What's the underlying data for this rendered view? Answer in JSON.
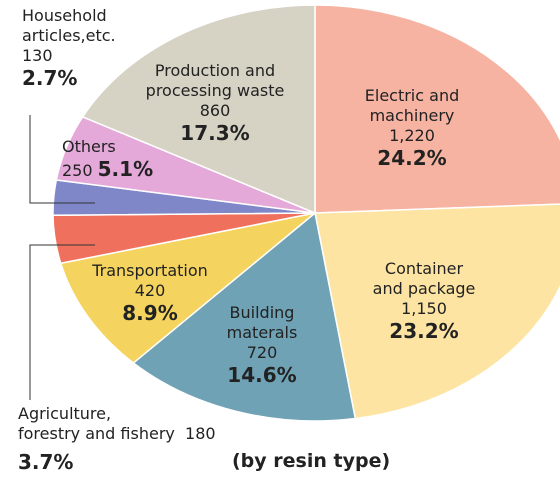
{
  "chart_data": {
    "type": "pie",
    "title": "(by resin type)",
    "categories": [
      "Electric and\nmachinery",
      "Container\nand package",
      "Building\nmaterals",
      "Transportation",
      "Agriculture,\nforestry and fishery",
      "Household\narticles,etc.",
      "Others",
      "Production and\nprocessing waste"
    ],
    "values": [
      24.2,
      23.2,
      14.6,
      8.9,
      3.7,
      2.7,
      5.1,
      17.3
    ],
    "value_labels": [
      "24.2%",
      "23.2%",
      "14.6%",
      "8.9%",
      "3.7%",
      "2.7%",
      "5.1%",
      "17.3%"
    ],
    "amounts": [
      1220,
      1150,
      720,
      420,
      180,
      130,
      250,
      860
    ],
    "amount_labels": [
      "1,220",
      "1,150",
      "720",
      "420",
      "180",
      "130",
      "250",
      "860"
    ],
    "colors": [
      "#f7b3a2",
      "#fde4a3",
      "#6fa2b5",
      "#f4d45e",
      "#f0705e",
      "#7f87c8",
      "#e4a8d9",
      "#d6d2c4"
    ]
  }
}
